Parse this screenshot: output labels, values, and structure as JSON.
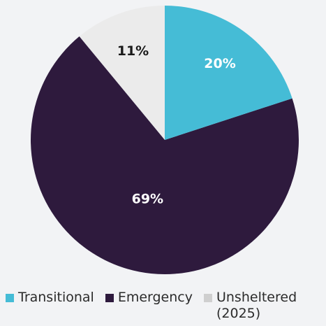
{
  "chart_data": {
    "type": "pie",
    "categories": [
      "Transitional",
      "Emergency",
      "Unsheltered (2025)"
    ],
    "values": [
      20,
      69,
      11
    ],
    "value_labels": [
      "20%",
      "69%",
      "11%"
    ],
    "colors": [
      "#45bcd6",
      "#2e1a3d",
      "#ebebeb"
    ],
    "label_colors": [
      "#ffffff",
      "#ffffff",
      "#1a1a1a"
    ],
    "legend": "bottom"
  }
}
